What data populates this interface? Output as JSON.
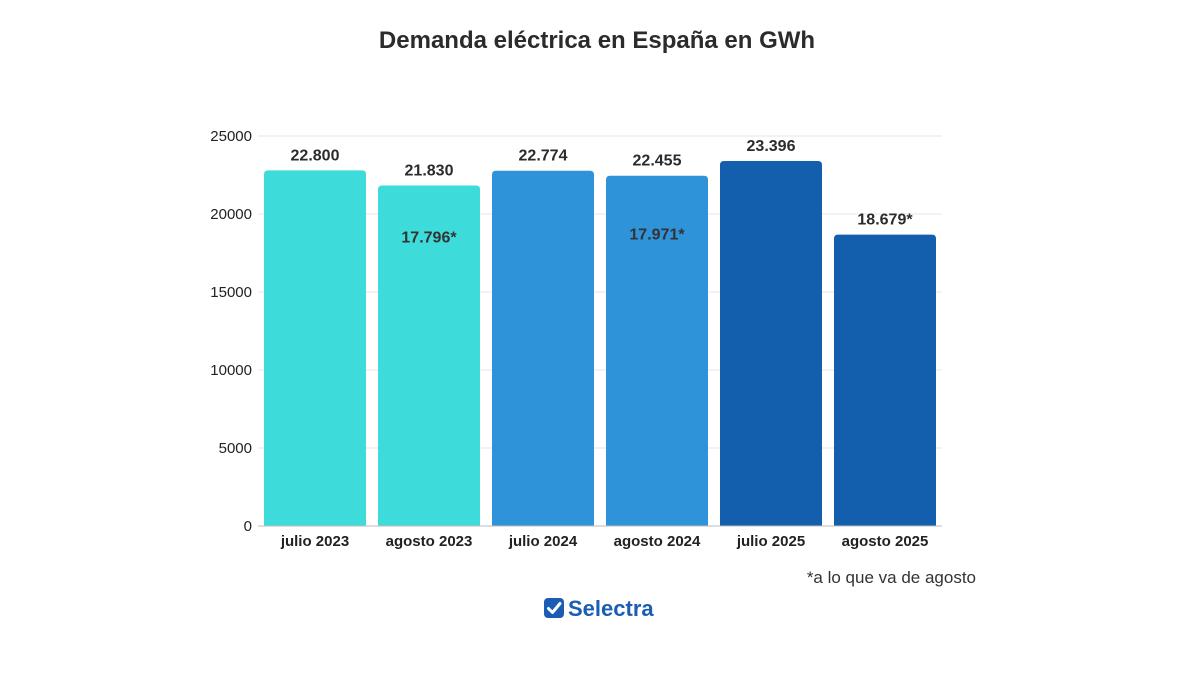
{
  "chart_data": {
    "type": "bar",
    "title": "Demanda eléctrica en España en GWh",
    "categories": [
      "julio 2023",
      "agosto 2023",
      "julio 2024",
      "agosto 2024",
      "julio 2025",
      "agosto 2025"
    ],
    "values": [
      22800,
      21830,
      22774,
      22455,
      23396,
      18679
    ],
    "value_labels": [
      "22.800",
      "21.830",
      "22.774",
      "22.455",
      "23.396",
      "18.679*"
    ],
    "inner_values": [
      null,
      17796,
      null,
      17971,
      null,
      null
    ],
    "inner_labels": [
      null,
      "17.796*",
      null,
      "17.971*",
      null,
      null
    ],
    "bar_colors": [
      "#3ddbd9",
      "#3ddbd9",
      "#2e93d9",
      "#2e93d9",
      "#135fad",
      "#135fad"
    ],
    "ylim": [
      0,
      25000
    ],
    "yticks": [
      "0",
      "5000",
      "10000",
      "15000",
      "20000",
      "25000"
    ],
    "ytick_values": [
      0,
      5000,
      10000,
      15000,
      20000,
      25000
    ],
    "grid": true,
    "xlabel": "",
    "ylabel": ""
  },
  "footnote": "*a lo que va de agosto",
  "brand": {
    "name": "Selectra",
    "color": "#1a5db3",
    "icon": "check-badge-icon"
  }
}
